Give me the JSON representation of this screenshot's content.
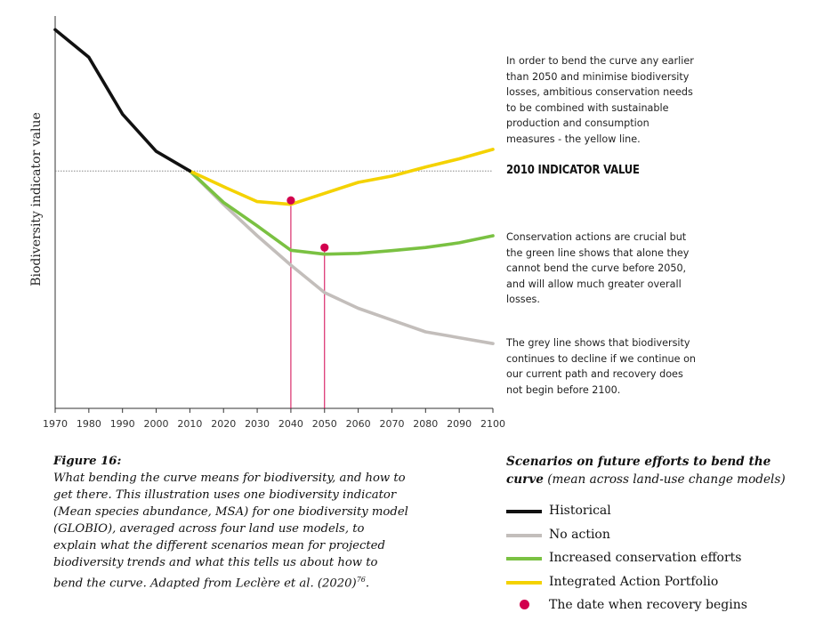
{
  "chart_data": {
    "type": "line",
    "title": "",
    "xlabel": "",
    "ylabel": "Biodiversity indicator value",
    "x_ticks": [
      1970,
      1980,
      1990,
      2000,
      2010,
      2020,
      2030,
      2040,
      2050,
      2060,
      2070,
      2080,
      2090,
      2100
    ],
    "xlim": [
      1970,
      2100
    ],
    "ylim": [
      0,
      1
    ],
    "y_ticks_shown": false,
    "grid": false,
    "legend_placement": "bottom-right",
    "series": [
      {
        "name": "Historical",
        "color": "#111111",
        "x": [
          1970,
          1980,
          1990,
          2000,
          2010
        ],
        "y": [
          0.965,
          0.895,
          0.75,
          0.655,
          0.605
        ]
      },
      {
        "name": "No action",
        "color": "#c3bebb",
        "x": [
          2010,
          2020,
          2030,
          2040,
          2050,
          2060,
          2070,
          2080,
          2090,
          2100
        ],
        "y": [
          0.605,
          0.52,
          0.44,
          0.365,
          0.295,
          0.255,
          0.225,
          0.195,
          0.18,
          0.165
        ]
      },
      {
        "name": "Increased conservation efforts",
        "color": "#7ac142",
        "x": [
          2010,
          2020,
          2030,
          2040,
          2050,
          2060,
          2070,
          2080,
          2090,
          2100
        ],
        "y": [
          0.605,
          0.525,
          0.465,
          0.403,
          0.393,
          0.395,
          0.402,
          0.41,
          0.422,
          0.44
        ]
      },
      {
        "name": "Integrated Action Portfolio",
        "color": "#f4d200",
        "x": [
          2010,
          2020,
          2030,
          2040,
          2050,
          2060,
          2070,
          2080,
          2090,
          2100
        ],
        "y": [
          0.605,
          0.565,
          0.527,
          0.52,
          0.548,
          0.576,
          0.592,
          0.615,
          0.636,
          0.66
        ]
      }
    ],
    "recovery_points": [
      {
        "scenario": "Integrated Action Portfolio",
        "x": 2040,
        "y": 0.53
      },
      {
        "scenario": "Increased conservation efforts",
        "x": 2050,
        "y": 0.41
      }
    ],
    "recovery_color": "#d2004e",
    "reference_line": {
      "label": "2010 INDICATOR VALUE",
      "y": 0.605
    },
    "annotations": [
      "In order to bend the curve any earlier than 2050 and minimise biodiversity losses, ambitious conservation needs to be combined with sustainable production and consumption measures - the yellow line.",
      "Conservation actions are crucial but the green line shows that alone they cannot bend the curve before 2050, and will allow much greater overall losses.",
      "The grey line shows that biodiversity continues to decline if we continue on our current path and recovery does not begin before 2100."
    ]
  },
  "caption": {
    "title": "Figure 16:",
    "body": "What bending the curve means for biodiversity, and how to get there. This illustration uses one biodiversity indicator (Mean species abundance, MSA) for one biodiversity model (GLOBIO), averaged across four land use models, to explain what the different scenarios mean for projected biodiversity trends and what this tells us about how to bend the curve. Adapted from Leclère et al. (2020)",
    "ref_sup": "76",
    "end": "."
  },
  "legend": {
    "title_bold": "Scenarios on future efforts to bend the curve",
    "title_rest": " (mean across land-use change models)",
    "items": [
      {
        "label": "Historical",
        "color": "#111111",
        "kind": "line"
      },
      {
        "label": "No action",
        "color": "#c3bebb",
        "kind": "line"
      },
      {
        "label": "Increased conservation efforts",
        "color": "#7ac142",
        "kind": "line"
      },
      {
        "label": "Integrated Action Portfolio",
        "color": "#f4d200",
        "kind": "line"
      },
      {
        "label": "The date when recovery begins",
        "color": "#d2004e",
        "kind": "dot"
      }
    ]
  }
}
